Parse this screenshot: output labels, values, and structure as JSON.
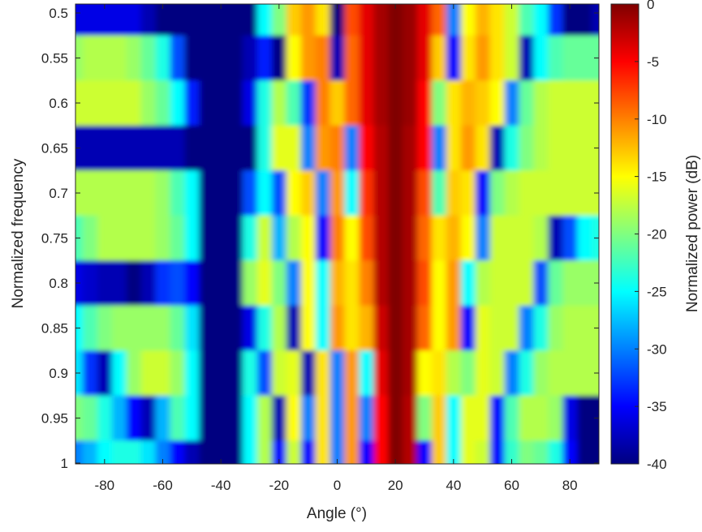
{
  "chart_data": {
    "type": "heatmap",
    "xlabel": "Angle (°)",
    "ylabel": "Normalized frequency",
    "colorbar_label": "Normalized power (dB)",
    "colormap": "jet",
    "clim": [
      -40,
      0
    ],
    "xlim": [
      -90,
      90
    ],
    "ylim": [
      0.5,
      1
    ],
    "y_reversed": true,
    "grid": false,
    "x_ticks": [
      "-80",
      "-60",
      "-40",
      "-20",
      "0",
      "20",
      "40",
      "60",
      "80"
    ],
    "y_ticks": [
      "0.5",
      "0.55",
      "0.6",
      "0.65",
      "0.7",
      "0.75",
      "0.8",
      "0.85",
      "0.9",
      "0.95",
      "1"
    ],
    "colorbar_ticks": [
      "0",
      "-5",
      "-10",
      "-15",
      "-20",
      "-25",
      "-30",
      "-35",
      "-40"
    ],
    "x": [
      -90,
      -85,
      -80,
      -75,
      -70,
      -65,
      -60,
      -55,
      -50,
      -45,
      -40,
      -35,
      -30,
      -25,
      -20,
      -15,
      -10,
      -5,
      0,
      5,
      10,
      15,
      20,
      25,
      30,
      35,
      40,
      45,
      50,
      55,
      60,
      65,
      70,
      75,
      80,
      85,
      90
    ],
    "y": [
      0.5,
      0.55,
      0.6,
      0.65,
      0.7,
      0.75,
      0.8,
      0.85,
      0.9,
      0.95,
      1.0
    ],
    "z": [
      [
        -36,
        -36,
        -36,
        -36,
        -36,
        -38,
        -40,
        -40,
        -40,
        -40,
        -40,
        -40,
        -40,
        -25,
        -20,
        -13,
        -11,
        -14,
        -40,
        -8,
        -4,
        -1.5,
        0,
        -1,
        -4,
        -9,
        -30,
        -15,
        -12,
        -14,
        -17,
        -22,
        -25,
        -33,
        -40,
        -40,
        -38
      ],
      [
        -19,
        -18,
        -18,
        -18,
        -19,
        -21,
        -24,
        -32,
        -40,
        -40,
        -40,
        -40,
        -38,
        -34,
        -40,
        -15,
        -11,
        -10,
        -38,
        -9,
        -4,
        -1.5,
        0,
        -1,
        -4,
        -13,
        -35,
        -14,
        -11,
        -14,
        -17,
        -38,
        -25,
        -22,
        -21,
        -21,
        -21
      ],
      [
        -17,
        -17,
        -17,
        -17,
        -17,
        -19,
        -21,
        -25,
        -34,
        -40,
        -40,
        -40,
        -36,
        -24,
        -18,
        -22,
        -33,
        -10,
        -13,
        -9,
        -4,
        -1.5,
        0,
        -1,
        -5,
        -20,
        -14,
        -12,
        -13,
        -15,
        -30,
        -21,
        -18,
        -17,
        -17,
        -17,
        -17
      ],
      [
        -38,
        -38,
        -38,
        -38,
        -38,
        -38,
        -38,
        -38,
        -40,
        -40,
        -40,
        -40,
        -40,
        -24,
        -16,
        -16,
        -30,
        -11,
        -10,
        -30,
        -5,
        -2,
        0,
        -1.5,
        -5,
        -30,
        -14,
        -11,
        -14,
        -38,
        -24,
        -20,
        -18,
        -17,
        -17,
        -17,
        -17
      ],
      [
        -18,
        -18,
        -18,
        -18,
        -18,
        -18,
        -19,
        -22,
        -25,
        -40,
        -40,
        -40,
        -32,
        -25,
        -32,
        -15,
        -13,
        -30,
        -11,
        -25,
        -7,
        -2,
        0,
        -1.5,
        -8,
        -22,
        -13,
        -14,
        -35,
        -20,
        -18,
        -17,
        -17,
        -17,
        -17,
        -17,
        -17
      ],
      [
        -22,
        -20,
        -18,
        -18,
        -18,
        -18,
        -19,
        -21,
        -25,
        -40,
        -40,
        -40,
        -24,
        -17,
        -28,
        -18,
        -15,
        -35,
        -10,
        -15,
        -8,
        -2,
        0,
        -1.5,
        -9,
        -14,
        -12,
        -15,
        -30,
        -17,
        -17,
        -17,
        -18,
        -38,
        -32,
        -25,
        -24
      ],
      [
        -36,
        -37,
        -38,
        -38,
        -40,
        -38,
        -33,
        -32,
        -35,
        -40,
        -40,
        -40,
        -19,
        -16,
        -20,
        -30,
        -15,
        -25,
        -12,
        -14,
        -10,
        -2,
        0,
        -1.5,
        -8,
        -15,
        -11,
        -25,
        -18,
        -17,
        -17,
        -17,
        -32,
        -21,
        -19,
        -19,
        -19
      ],
      [
        -25,
        -22,
        -20,
        -19,
        -19,
        -19,
        -19,
        -21,
        -26,
        -40,
        -40,
        -40,
        -36,
        -24,
        -18,
        -38,
        -15,
        -25,
        -11,
        -14,
        -12,
        -3,
        0,
        -1.5,
        -9,
        -15,
        -11,
        -35,
        -16,
        -17,
        -17,
        -30,
        -24,
        -19,
        -18,
        -18,
        -18
      ],
      [
        -26,
        -33,
        -38,
        -25,
        -19,
        -17,
        -17,
        -19,
        -25,
        -40,
        -40,
        -40,
        -24,
        -32,
        -17,
        -16,
        -38,
        -14,
        -30,
        -11,
        -25,
        -4,
        0,
        -1.5,
        -15,
        -14,
        -18,
        -20,
        -16,
        -17,
        -30,
        -24,
        -19,
        -18,
        -18,
        -18,
        -18
      ],
      [
        -20,
        -21,
        -24,
        -28,
        -35,
        -38,
        -28,
        -22,
        -25,
        -40,
        -40,
        -40,
        -25,
        -18,
        -38,
        -15,
        -30,
        -14,
        -30,
        -11,
        -30,
        -5,
        0,
        -2,
        -20,
        -13,
        -25,
        -16,
        -16,
        -35,
        -22,
        -18,
        -18,
        -19,
        -36,
        -40,
        -40
      ],
      [
        -30,
        -28,
        -25,
        -24,
        -24,
        -26,
        -30,
        -35,
        -38,
        -40,
        -40,
        -40,
        -25,
        -18,
        -35,
        -17,
        -35,
        -14,
        -30,
        -11,
        -35,
        -5,
        0,
        -2,
        -35,
        -13,
        -25,
        -16,
        -17,
        -35,
        -23,
        -20,
        -21,
        -24,
        -35,
        -40,
        -40
      ]
    ]
  }
}
